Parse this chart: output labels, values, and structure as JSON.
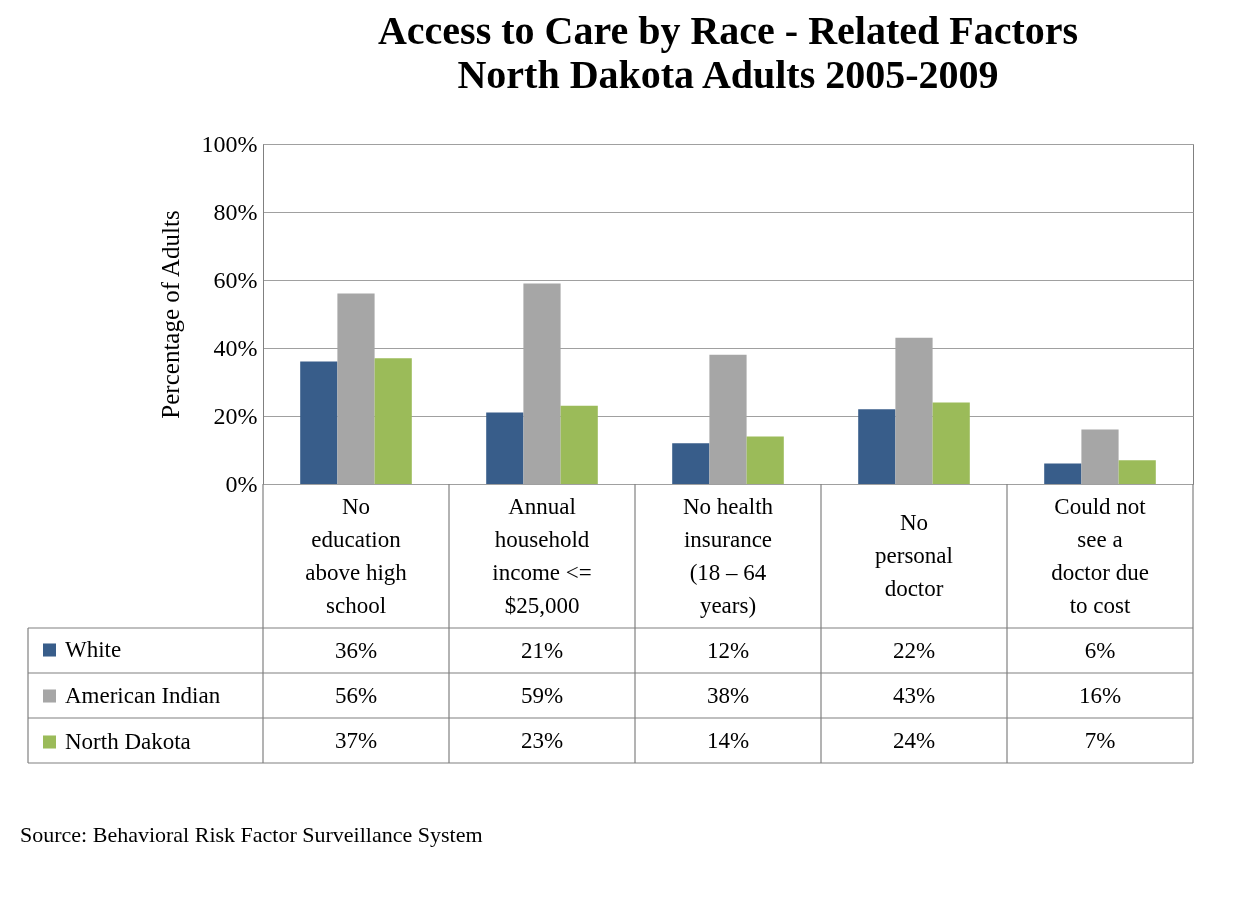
{
  "chart_data": {
    "type": "bar",
    "title": "Access to Care by Race - Related Factors",
    "subtitle": "North Dakota Adults 2005-2009",
    "ylabel": "Percentage of Adults",
    "categories": [
      "No education above high school",
      "Annual household income <= $25,000",
      "No health insurance (18 – 64 years)",
      "No personal doctor",
      "Could not see a doctor due to cost"
    ],
    "series": [
      {
        "name": "White",
        "color": "#385d8a",
        "values": [
          36,
          21,
          12,
          22,
          6
        ],
        "value_labels": [
          "36%",
          "21%",
          "12%",
          "22%",
          "6%"
        ]
      },
      {
        "name": "American Indian",
        "color": "#a6a6a6",
        "values": [
          56,
          59,
          38,
          43,
          16
        ],
        "value_labels": [
          "56%",
          "59%",
          "38%",
          "43%",
          "16%"
        ]
      },
      {
        "name": "North Dakota",
        "color": "#9bbb59",
        "values": [
          37,
          23,
          14,
          24,
          7
        ],
        "value_labels": [
          "37%",
          "23%",
          "14%",
          "24%",
          "7%"
        ]
      }
    ],
    "ylim": [
      0,
      100
    ],
    "yticks": [
      {
        "value": 0,
        "label": "0%"
      },
      {
        "value": 20,
        "label": "20%"
      },
      {
        "value": 40,
        "label": "40%"
      },
      {
        "value": 60,
        "label": "60%"
      },
      {
        "value": 80,
        "label": "80%"
      },
      {
        "value": 100,
        "label": "100%"
      }
    ],
    "grid": "y",
    "legend": "bottom left",
    "annotations": [
      "Source: Behavioral Risk Factor Surveillance System"
    ]
  }
}
